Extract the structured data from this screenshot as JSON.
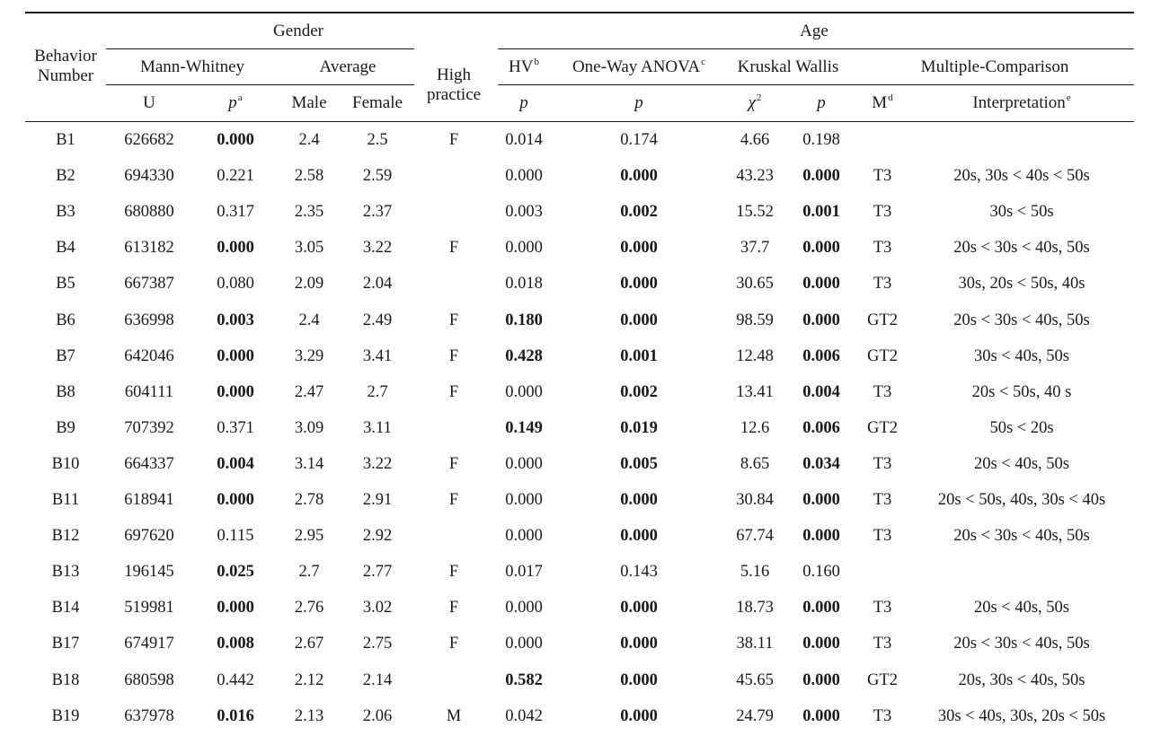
{
  "header": {
    "behavior_number": [
      "Behavior",
      "Number"
    ],
    "gender": "Gender",
    "age": "Age",
    "mann_whitney": "Mann-Whitney",
    "average": "Average",
    "high_practice": [
      "High",
      "practice"
    ],
    "hv": "HV",
    "hv_sup": "b",
    "anova": "One-Way ANOVA",
    "anova_sup": "c",
    "kruskal": "Kruskal Wallis",
    "multiple": "Multiple-Comparison",
    "u": "U",
    "p": "p",
    "p_sup_a": "a",
    "male": "Male",
    "female": "Female",
    "hv_p": "p",
    "anova_p": "p",
    "chi": "χ",
    "chi_sup": "2",
    "kw_p": "p",
    "m": "M",
    "m_sup": "d",
    "interpretation": "Interpretation",
    "interpretation_sup": "e"
  },
  "rows": [
    {
      "b": "B1",
      "u": "626682",
      "p": "0.000",
      "p_bold": true,
      "male": "2.4",
      "female": "2.5",
      "hp": "F",
      "hv": "0.014",
      "hv_bold": false,
      "anova": "0.174",
      "anova_bold": false,
      "chi": "4.66",
      "kwp": "0.198",
      "kwp_bold": false,
      "m": "",
      "interp": ""
    },
    {
      "b": "B2",
      "u": "694330",
      "p": "0.221",
      "p_bold": false,
      "male": "2.58",
      "female": "2.59",
      "hp": "",
      "hv": "0.000",
      "hv_bold": false,
      "anova": "0.000",
      "anova_bold": true,
      "chi": "43.23",
      "kwp": "0.000",
      "kwp_bold": true,
      "m": "T3",
      "interp": "20s, 30s < 40s < 50s"
    },
    {
      "b": "B3",
      "u": "680880",
      "p": "0.317",
      "p_bold": false,
      "male": "2.35",
      "female": "2.37",
      "hp": "",
      "hv": "0.003",
      "hv_bold": false,
      "anova": "0.002",
      "anova_bold": true,
      "chi": "15.52",
      "kwp": "0.001",
      "kwp_bold": true,
      "m": "T3",
      "interp": "30s < 50s"
    },
    {
      "b": "B4",
      "u": "613182",
      "p": "0.000",
      "p_bold": true,
      "male": "3.05",
      "female": "3.22",
      "hp": "F",
      "hv": "0.000",
      "hv_bold": false,
      "anova": "0.000",
      "anova_bold": true,
      "chi": "37.7",
      "kwp": "0.000",
      "kwp_bold": true,
      "m": "T3",
      "interp": "20s < 30s < 40s, 50s"
    },
    {
      "b": "B5",
      "u": "667387",
      "p": "0.080",
      "p_bold": false,
      "male": "2.09",
      "female": "2.04",
      "hp": "",
      "hv": "0.018",
      "hv_bold": false,
      "anova": "0.000",
      "anova_bold": true,
      "chi": "30.65",
      "kwp": "0.000",
      "kwp_bold": true,
      "m": "T3",
      "interp": "30s, 20s < 50s, 40s"
    },
    {
      "b": "B6",
      "u": "636998",
      "p": "0.003",
      "p_bold": true,
      "male": "2.4",
      "female": "2.49",
      "hp": "F",
      "hv": "0.180",
      "hv_bold": true,
      "anova": "0.000",
      "anova_bold": true,
      "chi": "98.59",
      "kwp": "0.000",
      "kwp_bold": true,
      "m": "GT2",
      "interp": "20s < 30s < 40s, 50s"
    },
    {
      "b": "B7",
      "u": "642046",
      "p": "0.000",
      "p_bold": true,
      "male": "3.29",
      "female": "3.41",
      "hp": "F",
      "hv": "0.428",
      "hv_bold": true,
      "anova": "0.001",
      "anova_bold": true,
      "chi": "12.48",
      "kwp": "0.006",
      "kwp_bold": true,
      "m": "GT2",
      "interp": "30s < 40s, 50s"
    },
    {
      "b": "B8",
      "u": "604111",
      "p": "0.000",
      "p_bold": true,
      "male": "2.47",
      "female": "2.7",
      "hp": "F",
      "hv": "0.000",
      "hv_bold": false,
      "anova": "0.002",
      "anova_bold": true,
      "chi": "13.41",
      "kwp": "0.004",
      "kwp_bold": true,
      "m": "T3",
      "interp": "20s < 50s, 40 s"
    },
    {
      "b": "B9",
      "u": "707392",
      "p": "0.371",
      "p_bold": false,
      "male": "3.09",
      "female": "3.11",
      "hp": "",
      "hv": "0.149",
      "hv_bold": true,
      "anova": "0.019",
      "anova_bold": true,
      "chi": "12.6",
      "kwp": "0.006",
      "kwp_bold": true,
      "m": "GT2",
      "interp": "50s < 20s"
    },
    {
      "b": "B10",
      "u": "664337",
      "p": "0.004",
      "p_bold": true,
      "male": "3.14",
      "female": "3.22",
      "hp": "F",
      "hv": "0.000",
      "hv_bold": false,
      "anova": "0.005",
      "anova_bold": true,
      "chi": "8.65",
      "kwp": "0.034",
      "kwp_bold": true,
      "m": "T3",
      "interp": "20s < 40s, 50s"
    },
    {
      "b": "B11",
      "u": "618941",
      "p": "0.000",
      "p_bold": true,
      "male": "2.78",
      "female": "2.91",
      "hp": "F",
      "hv": "0.000",
      "hv_bold": false,
      "anova": "0.000",
      "anova_bold": true,
      "chi": "30.84",
      "kwp": "0.000",
      "kwp_bold": true,
      "m": "T3",
      "interp": "20s < 50s, 40s, 30s < 40s"
    },
    {
      "b": "B12",
      "u": "697620",
      "p": "0.115",
      "p_bold": false,
      "male": "2.95",
      "female": "2.92",
      "hp": "",
      "hv": "0.000",
      "hv_bold": false,
      "anova": "0.000",
      "anova_bold": true,
      "chi": "67.74",
      "kwp": "0.000",
      "kwp_bold": true,
      "m": "T3",
      "interp": "20s < 30s < 40s, 50s"
    },
    {
      "b": "B13",
      "u": "196145",
      "p": "0.025",
      "p_bold": true,
      "male": "2.7",
      "female": "2.77",
      "hp": "F",
      "hv": "0.017",
      "hv_bold": false,
      "anova": "0.143",
      "anova_bold": false,
      "chi": "5.16",
      "kwp": "0.160",
      "kwp_bold": false,
      "m": "",
      "interp": ""
    },
    {
      "b": "B14",
      "u": "519981",
      "p": "0.000",
      "p_bold": true,
      "male": "2.76",
      "female": "3.02",
      "hp": "F",
      "hv": "0.000",
      "hv_bold": false,
      "anova": "0.000",
      "anova_bold": true,
      "chi": "18.73",
      "kwp": "0.000",
      "kwp_bold": true,
      "m": "T3",
      "interp": "20s < 40s, 50s"
    },
    {
      "b": "B17",
      "u": "674917",
      "p": "0.008",
      "p_bold": true,
      "male": "2.67",
      "female": "2.75",
      "hp": "F",
      "hv": "0.000",
      "hv_bold": false,
      "anova": "0.000",
      "anova_bold": true,
      "chi": "38.11",
      "kwp": "0.000",
      "kwp_bold": true,
      "m": "T3",
      "interp": "20s < 30s < 40s, 50s"
    },
    {
      "b": "B18",
      "u": "680598",
      "p": "0.442",
      "p_bold": false,
      "male": "2.12",
      "female": "2.14",
      "hp": "",
      "hv": "0.582",
      "hv_bold": true,
      "anova": "0.000",
      "anova_bold": true,
      "chi": "45.65",
      "kwp": "0.000",
      "kwp_bold": true,
      "m": "GT2",
      "interp": "20s, 30s < 40s, 50s"
    },
    {
      "b": "B19",
      "u": "637978",
      "p": "0.016",
      "p_bold": true,
      "male": "2.13",
      "female": "2.06",
      "hp": "M",
      "hv": "0.042",
      "hv_bold": false,
      "anova": "0.000",
      "anova_bold": true,
      "chi": "24.79",
      "kwp": "0.000",
      "kwp_bold": true,
      "m": "T3",
      "interp": "30s < 40s, 30s, 20s < 50s"
    }
  ]
}
